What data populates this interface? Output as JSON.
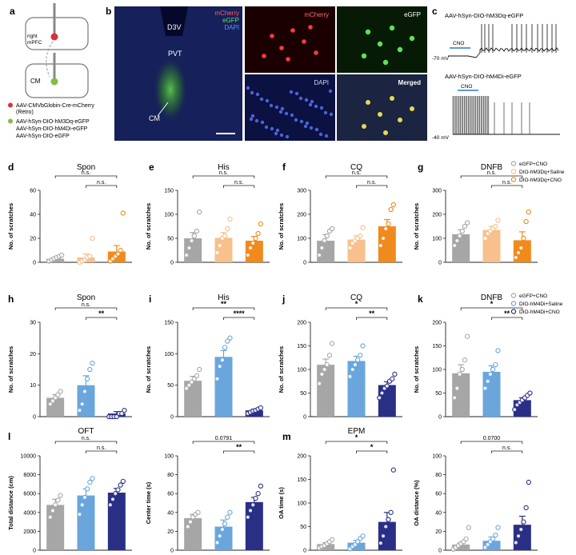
{
  "panel_letters": {
    "a": "a",
    "b": "b",
    "c": "c",
    "d": "d",
    "e": "e",
    "f": "f",
    "g": "g",
    "h": "h",
    "i": "i",
    "j": "j",
    "k": "k",
    "l": "l",
    "m": "m"
  },
  "diagram": {
    "top_label": "right\nmPFC",
    "bottom_label": "CM",
    "legend": [
      {
        "text": "AAV-CMVbGlobin-Cre-mCherry",
        "color": "#d9323c"
      },
      {
        "text": "(Retro)",
        "color": ""
      },
      {
        "text": "AAV-hSyn-DIO-hM3Dq-eGFP",
        "color": "#7dbf45"
      },
      {
        "text": "AAV-hSyn-DIO-hM4Di-eGFP",
        "color": ""
      },
      {
        "text": "AAV-hSyn-DIO-eGFP",
        "color": ""
      }
    ]
  },
  "micrographs": {
    "main": {
      "labels": {
        "d3v": "D3V",
        "pvt": "PVT",
        "cm": "CM"
      },
      "legend": [
        "mCherry",
        "eGFP",
        "DAPI"
      ],
      "legend_colors": [
        "#ff5c5c",
        "#6ddc5a",
        "#6a8cff"
      ]
    },
    "tiles": [
      "mCherry",
      "eGFP",
      "DAPI",
      "Merged"
    ]
  },
  "traces": {
    "top_title": "AAV-hSyn-DIO-hM3Dq-eGFP",
    "bottom_title": "AAV-hSyn-DIO-hM4Di-eGFP",
    "cno": "CNO",
    "top_vm": "-70 mV",
    "bottom_vm": "-40 mV"
  },
  "legend_hm3dq": {
    "entries": [
      "eGFP+CNO",
      "DIO-hM3Dq+Saline",
      "DIO-hM3Dq+CNO"
    ],
    "colors": [
      "#a6a6a6",
      "#f7c08c",
      "#f08a1d"
    ]
  },
  "legend_hm4di": {
    "entries": [
      "eGFP+CNO",
      "DIO-hM4Di+Saline",
      "DIO-hM4Di+CNO"
    ],
    "colors": [
      "#a6a6a6",
      "#6aa6dc",
      "#2a2f86"
    ]
  },
  "chart_data": [
    {
      "id": "d",
      "type": "bar",
      "title": "Spon",
      "ylabel": "No. of scratches",
      "ylim": [
        0,
        60
      ],
      "yticks": [
        0,
        20,
        40,
        60
      ],
      "group": "hm3dq",
      "categories": [
        "eGFP+CNO",
        "DIO-hM3Dq+Saline",
        "DIO-hM3Dq+CNO"
      ],
      "values": [
        3,
        4,
        9
      ],
      "errors": [
        1,
        3,
        5
      ],
      "points": [
        [
          1,
          2,
          3,
          4,
          5,
          6
        ],
        [
          0,
          1,
          2,
          4,
          5,
          20
        ],
        [
          1,
          3,
          5,
          7,
          10,
          41
        ]
      ],
      "annotations": [
        {
          "from": 0,
          "to": 2,
          "text": "n.s."
        },
        {
          "from": 1,
          "to": 2,
          "text": "n.s."
        }
      ]
    },
    {
      "id": "e",
      "type": "bar",
      "title": "His",
      "ylabel": "No. of scratches",
      "ylim": [
        0,
        150
      ],
      "yticks": [
        0,
        50,
        100,
        150
      ],
      "group": "hm3dq",
      "categories": [
        "eGFP+CNO",
        "DIO-hM3Dq+Saline",
        "DIO-hM3Dq+CNO"
      ],
      "values": [
        50,
        51,
        45
      ],
      "errors": [
        12,
        11,
        9
      ],
      "points": [
        [
          15,
          30,
          45,
          55,
          65,
          105
        ],
        [
          20,
          35,
          50,
          55,
          70,
          90
        ],
        [
          15,
          30,
          40,
          50,
          60,
          80
        ]
      ],
      "annotations": [
        {
          "from": 0,
          "to": 2,
          "text": "n.s."
        },
        {
          "from": 1,
          "to": 2,
          "text": "n.s."
        }
      ]
    },
    {
      "id": "f",
      "type": "bar",
      "title": "CQ",
      "ylabel": "No. of scratches",
      "ylim": [
        0,
        300
      ],
      "yticks": [
        0,
        100,
        200,
        300
      ],
      "group": "hm3dq",
      "categories": [
        "eGFP+CNO",
        "DIO-hM3Dq+Saline",
        "DIO-hM3Dq+CNO"
      ],
      "values": [
        90,
        95,
        150
      ],
      "errors": [
        25,
        15,
        28
      ],
      "points": [
        [
          30,
          60,
          90,
          110,
          130,
          140
        ],
        [
          60,
          80,
          90,
          100,
          110,
          145
        ],
        [
          70,
          100,
          140,
          160,
          220,
          240
        ]
      ],
      "annotations": [
        {
          "from": 0,
          "to": 2,
          "text": "n.s."
        },
        {
          "from": 1,
          "to": 2,
          "text": "n.s."
        }
      ]
    },
    {
      "id": "g",
      "type": "bar",
      "title": "DNFB",
      "ylabel": "No. of scratches",
      "ylim": [
        0,
        300
      ],
      "yticks": [
        0,
        100,
        200,
        300
      ],
      "group": "hm3dq",
      "categories": [
        "eGFP+CNO",
        "DIO-hM3Dq+Saline",
        "DIO-hM3Dq+CNO"
      ],
      "values": [
        117,
        135,
        92
      ],
      "errors": [
        18,
        15,
        35
      ],
      "points": [
        [
          70,
          90,
          110,
          130,
          150,
          165
        ],
        [
          100,
          120,
          130,
          140,
          150,
          175
        ],
        [
          20,
          40,
          60,
          100,
          170,
          210
        ]
      ],
      "annotations": [
        {
          "from": 0,
          "to": 2,
          "text": "n.s."
        },
        {
          "from": 1,
          "to": 2,
          "text": "n.s."
        }
      ]
    },
    {
      "id": "h",
      "type": "bar",
      "title": "Spon",
      "ylabel": "No. of scratches",
      "ylim": [
        0,
        30
      ],
      "yticks": [
        0,
        10,
        20,
        30
      ],
      "group": "hm4di",
      "categories": [
        "eGFP+CNO",
        "DIO-hM4Di+Saline",
        "DIO-hM4Di+CNO"
      ],
      "values": [
        6,
        10,
        1
      ],
      "errors": [
        1,
        3,
        0.6
      ],
      "points": [
        [
          4,
          5,
          6,
          7,
          8
        ],
        [
          2,
          4,
          8,
          12,
          15,
          17
        ],
        [
          0,
          0,
          0,
          0,
          1,
          1,
          2
        ]
      ],
      "annotations": [
        {
          "from": 0,
          "to": 2,
          "text": "n.s."
        },
        {
          "from": 1,
          "to": 2,
          "text": "**"
        }
      ]
    },
    {
      "id": "i",
      "type": "bar",
      "title": "His",
      "ylabel": "No. of scratches",
      "ylim": [
        0,
        150
      ],
      "yticks": [
        0,
        50,
        100,
        150
      ],
      "group": "hm4di",
      "categories": [
        "eGFP+CNO",
        "DIO-hM4Di+Saline",
        "DIO-hM4Di+CNO"
      ],
      "values": [
        57,
        95,
        10
      ],
      "errors": [
        7,
        10,
        2
      ],
      "points": [
        [
          45,
          50,
          55,
          60,
          65,
          75
        ],
        [
          60,
          80,
          90,
          110,
          120,
          125
        ],
        [
          5,
          7,
          9,
          10,
          12,
          14
        ]
      ],
      "annotations": [
        {
          "from": 0,
          "to": 2,
          "text": "**"
        },
        {
          "from": 1,
          "to": 2,
          "text": "****"
        }
      ]
    },
    {
      "id": "j",
      "type": "bar",
      "title": "CQ",
      "ylabel": "No. of scratches",
      "ylim": [
        0,
        200
      ],
      "yticks": [
        0,
        50,
        100,
        150,
        200
      ],
      "group": "hm4di",
      "categories": [
        "eGFP+CNO",
        "DIO-hM4Di+Saline",
        "DIO-hM4Di+CNO"
      ],
      "values": [
        110,
        118,
        67
      ],
      "errors": [
        12,
        10,
        7
      ],
      "points": [
        [
          70,
          90,
          100,
          110,
          130,
          155
        ],
        [
          85,
          100,
          110,
          120,
          130,
          150
        ],
        [
          40,
          50,
          60,
          65,
          75,
          80,
          90
        ]
      ],
      "annotations": [
        {
          "from": 0,
          "to": 2,
          "text": "*"
        },
        {
          "from": 1,
          "to": 2,
          "text": "**"
        }
      ]
    },
    {
      "id": "k",
      "type": "bar",
      "title": "DNFB",
      "ylabel": "No. of scratches",
      "ylim": [
        0,
        200
      ],
      "yticks": [
        0,
        50,
        100,
        150,
        200
      ],
      "group": "hm4di",
      "categories": [
        "eGFP+CNO",
        "DIO-hM4Di+Saline",
        "DIO-hM4Di+CNO"
      ],
      "values": [
        92,
        95,
        35
      ],
      "errors": [
        18,
        13,
        5
      ],
      "points": [
        [
          40,
          60,
          90,
          100,
          120,
          170
        ],
        [
          60,
          75,
          90,
          100,
          110,
          140
        ],
        [
          15,
          25,
          30,
          35,
          40,
          45,
          50
        ]
      ],
      "annotations": [
        {
          "from": 0,
          "to": 2,
          "text": "*"
        },
        {
          "from": 1,
          "to": 2,
          "text": "**"
        }
      ]
    },
    {
      "id": "l1",
      "type": "bar",
      "title": "OFT",
      "ylabel": "Total distance (cm)",
      "ylim": [
        0,
        10000
      ],
      "yticks": [
        0,
        2000,
        4000,
        6000,
        8000,
        10000
      ],
      "group": "hm4di",
      "categories": [
        "eGFP+CNO",
        "DIO-hM4Di+Saline",
        "DIO-hM4Di+CNO"
      ],
      "values": [
        4800,
        5800,
        6100
      ],
      "errors": [
        600,
        700,
        450
      ],
      "points": [
        [
          3500,
          4200,
          4800,
          5300,
          5800
        ],
        [
          3800,
          4800,
          5600,
          6500,
          7200,
          7600
        ],
        [
          4800,
          5400,
          6000,
          6400,
          6900,
          7300
        ]
      ],
      "annotations": [
        {
          "from": 0,
          "to": 2,
          "text": "n.s."
        },
        {
          "from": 1,
          "to": 2,
          "text": "n.s."
        }
      ]
    },
    {
      "id": "l2",
      "type": "bar",
      "title": "",
      "ylabel": "Center time (s)",
      "ylim": [
        0,
        100
      ],
      "yticks": [
        0,
        20,
        40,
        60,
        80,
        100
      ],
      "group": "hm4di",
      "categories": [
        "eGFP+CNO",
        "DIO-hM4Di+Saline",
        "DIO-hM4Di+CNO"
      ],
      "values": [
        34,
        25,
        51
      ],
      "errors": [
        4,
        7,
        5
      ],
      "points": [
        [
          25,
          30,
          35,
          38,
          40
        ],
        [
          8,
          15,
          22,
          28,
          35,
          40
        ],
        [
          35,
          42,
          48,
          55,
          60,
          68
        ]
      ],
      "annotations": [
        {
          "from": 0,
          "to": 2,
          "text": "0.0791"
        },
        {
          "from": 1,
          "to": 2,
          "text": "**"
        }
      ]
    },
    {
      "id": "m1",
      "type": "bar",
      "title": "EPM",
      "ylabel": "OA time (s)",
      "ylim": [
        0,
        200
      ],
      "yticks": [
        0,
        50,
        100,
        150,
        200
      ],
      "group": "hm4di",
      "categories": [
        "eGFP+CNO",
        "DIO-hM4Di+Saline",
        "DIO-hM4Di+CNO"
      ],
      "values": [
        13,
        16,
        60
      ],
      "errors": [
        3,
        5,
        20
      ],
      "points": [
        [
          5,
          8,
          10,
          14,
          18,
          22
        ],
        [
          3,
          8,
          12,
          18,
          25,
          30
        ],
        [
          15,
          30,
          50,
          65,
          80,
          170
        ]
      ],
      "annotations": [
        {
          "from": 0,
          "to": 2,
          "text": "*"
        },
        {
          "from": 1,
          "to": 2,
          "text": "*"
        }
      ]
    },
    {
      "id": "m2",
      "type": "bar",
      "title": "",
      "ylabel": "OA distance (%)",
      "ylim": [
        0,
        100
      ],
      "yticks": [
        0,
        20,
        40,
        60,
        80,
        100
      ],
      "group": "hm4di",
      "categories": [
        "eGFP+CNO",
        "DIO-hM4Di+Saline",
        "DIO-hM4Di+CNO"
      ],
      "values": [
        6,
        10,
        27
      ],
      "errors": [
        2,
        4,
        9
      ],
      "points": [
        [
          1,
          3,
          5,
          7,
          9,
          12,
          24
        ],
        [
          3,
          6,
          9,
          12,
          16,
          24
        ],
        [
          8,
          15,
          22,
          30,
          45,
          72
        ]
      ],
      "annotations": [
        {
          "from": 0,
          "to": 2,
          "text": "0.0700"
        },
        {
          "from": 1,
          "to": 2,
          "text": "n.s."
        }
      ]
    }
  ]
}
